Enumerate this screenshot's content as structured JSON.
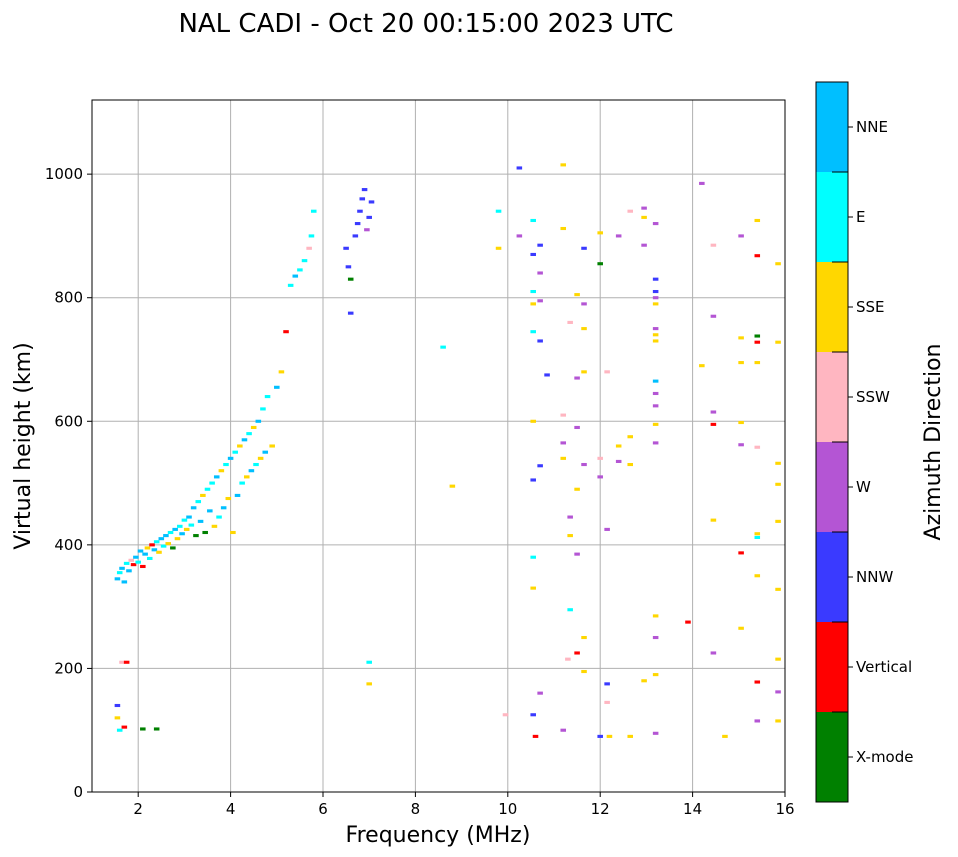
{
  "chart_data": {
    "type": "scatter",
    "title": "NAL CADI - Oct 20 00:15:00 2023 UTC",
    "xlabel": "Frequency (MHz)",
    "ylabel": "Virtual height (km)",
    "xlim": [
      1,
      16
    ],
    "ylim": [
      0,
      1120
    ],
    "xticks": [
      2,
      4,
      6,
      8,
      10,
      12,
      14,
      16
    ],
    "yticks": [
      0,
      200,
      400,
      600,
      800,
      1000
    ],
    "grid": true,
    "colorbar": {
      "label": "Azimuth Direction",
      "position": "right",
      "categories": [
        {
          "name": "X-mode",
          "color": "#008000"
        },
        {
          "name": "Vertical",
          "color": "#ff0000"
        },
        {
          "name": "NNW",
          "color": "#3a3aff"
        },
        {
          "name": "W",
          "color": "#b455d4"
        },
        {
          "name": "SSW",
          "color": "#ffb6c1"
        },
        {
          "name": "SSE",
          "color": "#ffd700"
        },
        {
          "name": "E",
          "color": "#00ffff"
        },
        {
          "name": "NNE",
          "color": "#00bfff"
        }
      ]
    },
    "points": [
      {
        "f": 1.55,
        "h": 345,
        "c": "NNE"
      },
      {
        "f": 1.6,
        "h": 355,
        "c": "E"
      },
      {
        "f": 1.65,
        "h": 362,
        "c": "NNE"
      },
      {
        "f": 1.7,
        "h": 340,
        "c": "NNE"
      },
      {
        "f": 1.75,
        "h": 370,
        "c": "E"
      },
      {
        "f": 1.8,
        "h": 358,
        "c": "NNE"
      },
      {
        "f": 1.85,
        "h": 375,
        "c": "SSW"
      },
      {
        "f": 1.9,
        "h": 368,
        "c": "Vertical"
      },
      {
        "f": 1.95,
        "h": 380,
        "c": "NNE"
      },
      {
        "f": 2.0,
        "h": 372,
        "c": "E"
      },
      {
        "f": 2.05,
        "h": 390,
        "c": "NNE"
      },
      {
        "f": 2.1,
        "h": 365,
        "c": "Vertical"
      },
      {
        "f": 2.15,
        "h": 385,
        "c": "NNE"
      },
      {
        "f": 2.2,
        "h": 395,
        "c": "SSE"
      },
      {
        "f": 2.25,
        "h": 378,
        "c": "E"
      },
      {
        "f": 2.3,
        "h": 400,
        "c": "Vertical"
      },
      {
        "f": 2.35,
        "h": 392,
        "c": "NNE"
      },
      {
        "f": 2.4,
        "h": 405,
        "c": "E"
      },
      {
        "f": 2.45,
        "h": 388,
        "c": "SSE"
      },
      {
        "f": 2.5,
        "h": 410,
        "c": "NNE"
      },
      {
        "f": 2.55,
        "h": 398,
        "c": "E"
      },
      {
        "f": 2.6,
        "h": 415,
        "c": "NNE"
      },
      {
        "f": 2.65,
        "h": 402,
        "c": "SSE"
      },
      {
        "f": 2.7,
        "h": 420,
        "c": "E"
      },
      {
        "f": 2.75,
        "h": 395,
        "c": "X-mode"
      },
      {
        "f": 2.8,
        "h": 425,
        "c": "NNE"
      },
      {
        "f": 2.85,
        "h": 410,
        "c": "SSE"
      },
      {
        "f": 2.9,
        "h": 430,
        "c": "E"
      },
      {
        "f": 2.95,
        "h": 418,
        "c": "NNE"
      },
      {
        "f": 3.0,
        "h": 440,
        "c": "E"
      },
      {
        "f": 3.05,
        "h": 425,
        "c": "SSE"
      },
      {
        "f": 3.1,
        "h": 445,
        "c": "NNE"
      },
      {
        "f": 3.15,
        "h": 432,
        "c": "E"
      },
      {
        "f": 3.2,
        "h": 460,
        "c": "NNE"
      },
      {
        "f": 3.25,
        "h": 415,
        "c": "X-mode"
      },
      {
        "f": 3.3,
        "h": 470,
        "c": "E"
      },
      {
        "f": 3.35,
        "h": 438,
        "c": "NNE"
      },
      {
        "f": 3.4,
        "h": 480,
        "c": "SSE"
      },
      {
        "f": 3.45,
        "h": 420,
        "c": "X-mode"
      },
      {
        "f": 3.5,
        "h": 490,
        "c": "E"
      },
      {
        "f": 3.55,
        "h": 455,
        "c": "NNE"
      },
      {
        "f": 3.6,
        "h": 500,
        "c": "E"
      },
      {
        "f": 3.65,
        "h": 430,
        "c": "SSE"
      },
      {
        "f": 3.7,
        "h": 510,
        "c": "NNE"
      },
      {
        "f": 3.75,
        "h": 445,
        "c": "E"
      },
      {
        "f": 3.8,
        "h": 520,
        "c": "SSE"
      },
      {
        "f": 3.85,
        "h": 460,
        "c": "NNE"
      },
      {
        "f": 3.9,
        "h": 530,
        "c": "E"
      },
      {
        "f": 3.95,
        "h": 475,
        "c": "SSE"
      },
      {
        "f": 4.0,
        "h": 540,
        "c": "NNE"
      },
      {
        "f": 4.05,
        "h": 420,
        "c": "SSE"
      },
      {
        "f": 4.1,
        "h": 550,
        "c": "E"
      },
      {
        "f": 4.15,
        "h": 480,
        "c": "NNE"
      },
      {
        "f": 4.2,
        "h": 560,
        "c": "SSE"
      },
      {
        "f": 4.25,
        "h": 500,
        "c": "E"
      },
      {
        "f": 4.3,
        "h": 570,
        "c": "NNE"
      },
      {
        "f": 4.35,
        "h": 510,
        "c": "SSE"
      },
      {
        "f": 4.4,
        "h": 580,
        "c": "E"
      },
      {
        "f": 4.45,
        "h": 520,
        "c": "NNE"
      },
      {
        "f": 4.5,
        "h": 590,
        "c": "SSE"
      },
      {
        "f": 4.55,
        "h": 530,
        "c": "E"
      },
      {
        "f": 4.6,
        "h": 600,
        "c": "NNE"
      },
      {
        "f": 4.65,
        "h": 540,
        "c": "SSE"
      },
      {
        "f": 4.7,
        "h": 620,
        "c": "E"
      },
      {
        "f": 4.75,
        "h": 550,
        "c": "NNE"
      },
      {
        "f": 4.8,
        "h": 640,
        "c": "E"
      },
      {
        "f": 4.9,
        "h": 560,
        "c": "SSE"
      },
      {
        "f": 5.0,
        "h": 655,
        "c": "NNE"
      },
      {
        "f": 5.1,
        "h": 680,
        "c": "SSE"
      },
      {
        "f": 5.2,
        "h": 745,
        "c": "Vertical"
      },
      {
        "f": 5.3,
        "h": 820,
        "c": "E"
      },
      {
        "f": 5.4,
        "h": 835,
        "c": "NNE"
      },
      {
        "f": 5.5,
        "h": 845,
        "c": "E"
      },
      {
        "f": 5.6,
        "h": 860,
        "c": "E"
      },
      {
        "f": 5.7,
        "h": 880,
        "c": "SSW"
      },
      {
        "f": 5.75,
        "h": 900,
        "c": "E"
      },
      {
        "f": 5.8,
        "h": 940,
        "c": "E"
      },
      {
        "f": 1.55,
        "h": 140,
        "c": "NNW"
      },
      {
        "f": 1.55,
        "h": 120,
        "c": "SSE"
      },
      {
        "f": 1.6,
        "h": 100,
        "c": "E"
      },
      {
        "f": 1.65,
        "h": 210,
        "c": "SSW"
      },
      {
        "f": 1.75,
        "h": 210,
        "c": "Vertical"
      },
      {
        "f": 1.7,
        "h": 105,
        "c": "Vertical"
      },
      {
        "f": 2.1,
        "h": 102,
        "c": "X-mode"
      },
      {
        "f": 2.4,
        "h": 102,
        "c": "X-mode"
      },
      {
        "f": 6.5,
        "h": 880,
        "c": "NNW"
      },
      {
        "f": 6.55,
        "h": 850,
        "c": "NNW"
      },
      {
        "f": 6.6,
        "h": 830,
        "c": "X-mode"
      },
      {
        "f": 6.7,
        "h": 900,
        "c": "NNW"
      },
      {
        "f": 6.75,
        "h": 920,
        "c": "NNW"
      },
      {
        "f": 6.8,
        "h": 940,
        "c": "NNW"
      },
      {
        "f": 6.85,
        "h": 960,
        "c": "NNW"
      },
      {
        "f": 6.9,
        "h": 975,
        "c": "NNW"
      },
      {
        "f": 6.95,
        "h": 910,
        "c": "W"
      },
      {
        "f": 7.0,
        "h": 930,
        "c": "NNW"
      },
      {
        "f": 7.05,
        "h": 955,
        "c": "NNW"
      },
      {
        "f": 6.6,
        "h": 775,
        "c": "NNW"
      },
      {
        "f": 7.0,
        "h": 175,
        "c": "SSE"
      },
      {
        "f": 7.0,
        "h": 210,
        "c": "E"
      },
      {
        "f": 8.6,
        "h": 720,
        "c": "E"
      },
      {
        "f": 8.8,
        "h": 495,
        "c": "SSE"
      },
      {
        "f": 9.8,
        "h": 940,
        "c": "E"
      },
      {
        "f": 9.8,
        "h": 880,
        "c": "SSE"
      },
      {
        "f": 9.95,
        "h": 125,
        "c": "SSW"
      },
      {
        "f": 10.25,
        "h": 1010,
        "c": "NNW"
      },
      {
        "f": 10.25,
        "h": 900,
        "c": "W"
      },
      {
        "f": 10.55,
        "h": 925,
        "c": "E"
      },
      {
        "f": 10.55,
        "h": 870,
        "c": "NNW"
      },
      {
        "f": 10.55,
        "h": 810,
        "c": "E"
      },
      {
        "f": 10.55,
        "h": 790,
        "c": "SSE"
      },
      {
        "f": 10.55,
        "h": 745,
        "c": "E"
      },
      {
        "f": 10.7,
        "h": 885,
        "c": "NNW"
      },
      {
        "f": 10.7,
        "h": 840,
        "c": "W"
      },
      {
        "f": 10.7,
        "h": 795,
        "c": "W"
      },
      {
        "f": 10.7,
        "h": 730,
        "c": "NNW"
      },
      {
        "f": 10.85,
        "h": 675,
        "c": "NNW"
      },
      {
        "f": 10.55,
        "h": 600,
        "c": "SSE"
      },
      {
        "f": 10.7,
        "h": 528,
        "c": "NNW"
      },
      {
        "f": 10.55,
        "h": 505,
        "c": "NNW"
      },
      {
        "f": 10.55,
        "h": 380,
        "c": "E"
      },
      {
        "f": 10.55,
        "h": 330,
        "c": "SSE"
      },
      {
        "f": 10.7,
        "h": 160,
        "c": "W"
      },
      {
        "f": 10.55,
        "h": 125,
        "c": "NNW"
      },
      {
        "f": 10.6,
        "h": 90,
        "c": "Vertical"
      },
      {
        "f": 11.2,
        "h": 1015,
        "c": "SSE"
      },
      {
        "f": 11.2,
        "h": 912,
        "c": "SSE"
      },
      {
        "f": 11.2,
        "h": 610,
        "c": "SSW"
      },
      {
        "f": 11.2,
        "h": 565,
        "c": "W"
      },
      {
        "f": 11.2,
        "h": 540,
        "c": "SSE"
      },
      {
        "f": 11.35,
        "h": 760,
        "c": "SSW"
      },
      {
        "f": 11.35,
        "h": 445,
        "c": "W"
      },
      {
        "f": 11.35,
        "h": 415,
        "c": "SSE"
      },
      {
        "f": 11.35,
        "h": 295,
        "c": "E"
      },
      {
        "f": 11.3,
        "h": 215,
        "c": "SSW"
      },
      {
        "f": 11.2,
        "h": 100,
        "c": "W"
      },
      {
        "f": 11.5,
        "h": 805,
        "c": "SSE"
      },
      {
        "f": 11.5,
        "h": 670,
        "c": "W"
      },
      {
        "f": 11.5,
        "h": 590,
        "c": "W"
      },
      {
        "f": 11.5,
        "h": 490,
        "c": "SSE"
      },
      {
        "f": 11.5,
        "h": 385,
        "c": "W"
      },
      {
        "f": 11.5,
        "h": 225,
        "c": "Vertical"
      },
      {
        "f": 11.65,
        "h": 880,
        "c": "NNW"
      },
      {
        "f": 11.65,
        "h": 790,
        "c": "W"
      },
      {
        "f": 11.65,
        "h": 750,
        "c": "SSE"
      },
      {
        "f": 11.65,
        "h": 680,
        "c": "SSE"
      },
      {
        "f": 11.65,
        "h": 530,
        "c": "W"
      },
      {
        "f": 11.65,
        "h": 250,
        "c": "SSE"
      },
      {
        "f": 11.65,
        "h": 195,
        "c": "SSE"
      },
      {
        "f": 12.0,
        "h": 905,
        "c": "SSE"
      },
      {
        "f": 12.0,
        "h": 855,
        "c": "X-mode"
      },
      {
        "f": 12.0,
        "h": 540,
        "c": "SSW"
      },
      {
        "f": 12.0,
        "h": 510,
        "c": "W"
      },
      {
        "f": 12.0,
        "h": 90,
        "c": "NNW"
      },
      {
        "f": 12.15,
        "h": 680,
        "c": "SSW"
      },
      {
        "f": 12.15,
        "h": 425,
        "c": "W"
      },
      {
        "f": 12.15,
        "h": 175,
        "c": "NNW"
      },
      {
        "f": 12.15,
        "h": 145,
        "c": "SSW"
      },
      {
        "f": 12.2,
        "h": 90,
        "c": "SSE"
      },
      {
        "f": 12.4,
        "h": 900,
        "c": "W"
      },
      {
        "f": 12.4,
        "h": 560,
        "c": "SSE"
      },
      {
        "f": 12.4,
        "h": 535,
        "c": "W"
      },
      {
        "f": 12.65,
        "h": 940,
        "c": "SSW"
      },
      {
        "f": 12.65,
        "h": 575,
        "c": "SSE"
      },
      {
        "f": 12.65,
        "h": 530,
        "c": "SSE"
      },
      {
        "f": 12.65,
        "h": 90,
        "c": "SSE"
      },
      {
        "f": 12.95,
        "h": 945,
        "c": "W"
      },
      {
        "f": 12.95,
        "h": 930,
        "c": "SSE"
      },
      {
        "f": 12.95,
        "h": 885,
        "c": "W"
      },
      {
        "f": 12.95,
        "h": 180,
        "c": "SSE"
      },
      {
        "f": 13.2,
        "h": 920,
        "c": "W"
      },
      {
        "f": 13.2,
        "h": 830,
        "c": "NNW"
      },
      {
        "f": 13.2,
        "h": 810,
        "c": "NNW"
      },
      {
        "f": 13.2,
        "h": 800,
        "c": "W"
      },
      {
        "f": 13.2,
        "h": 790,
        "c": "SSE"
      },
      {
        "f": 13.2,
        "h": 750,
        "c": "W"
      },
      {
        "f": 13.2,
        "h": 740,
        "c": "SSE"
      },
      {
        "f": 13.2,
        "h": 730,
        "c": "SSE"
      },
      {
        "f": 13.2,
        "h": 665,
        "c": "NNE"
      },
      {
        "f": 13.2,
        "h": 645,
        "c": "W"
      },
      {
        "f": 13.2,
        "h": 625,
        "c": "W"
      },
      {
        "f": 13.2,
        "h": 595,
        "c": "SSE"
      },
      {
        "f": 13.2,
        "h": 565,
        "c": "W"
      },
      {
        "f": 13.2,
        "h": 285,
        "c": "SSE"
      },
      {
        "f": 13.2,
        "h": 250,
        "c": "W"
      },
      {
        "f": 13.2,
        "h": 190,
        "c": "SSE"
      },
      {
        "f": 13.2,
        "h": 95,
        "c": "W"
      },
      {
        "f": 13.9,
        "h": 275,
        "c": "Vertical"
      },
      {
        "f": 14.2,
        "h": 985,
        "c": "W"
      },
      {
        "f": 14.2,
        "h": 690,
        "c": "SSE"
      },
      {
        "f": 14.45,
        "h": 885,
        "c": "SSW"
      },
      {
        "f": 14.45,
        "h": 770,
        "c": "W"
      },
      {
        "f": 14.45,
        "h": 615,
        "c": "W"
      },
      {
        "f": 14.45,
        "h": 595,
        "c": "Vertical"
      },
      {
        "f": 14.45,
        "h": 440,
        "c": "SSE"
      },
      {
        "f": 14.45,
        "h": 225,
        "c": "W"
      },
      {
        "f": 14.7,
        "h": 90,
        "c": "SSE"
      },
      {
        "f": 15.05,
        "h": 900,
        "c": "W"
      },
      {
        "f": 15.05,
        "h": 735,
        "c": "SSE"
      },
      {
        "f": 15.05,
        "h": 695,
        "c": "SSE"
      },
      {
        "f": 15.05,
        "h": 598,
        "c": "SSE"
      },
      {
        "f": 15.05,
        "h": 562,
        "c": "W"
      },
      {
        "f": 15.05,
        "h": 387,
        "c": "Vertical"
      },
      {
        "f": 15.05,
        "h": 265,
        "c": "SSE"
      },
      {
        "f": 15.4,
        "h": 925,
        "c": "SSE"
      },
      {
        "f": 15.4,
        "h": 868,
        "c": "Vertical"
      },
      {
        "f": 15.4,
        "h": 738,
        "c": "X-mode"
      },
      {
        "f": 15.4,
        "h": 728,
        "c": "Vertical"
      },
      {
        "f": 15.4,
        "h": 695,
        "c": "SSE"
      },
      {
        "f": 15.4,
        "h": 558,
        "c": "SSW"
      },
      {
        "f": 15.4,
        "h": 418,
        "c": "SSE"
      },
      {
        "f": 15.4,
        "h": 412,
        "c": "E"
      },
      {
        "f": 15.4,
        "h": 350,
        "c": "SSE"
      },
      {
        "f": 15.4,
        "h": 178,
        "c": "Vertical"
      },
      {
        "f": 15.4,
        "h": 115,
        "c": "W"
      },
      {
        "f": 15.85,
        "h": 855,
        "c": "SSE"
      },
      {
        "f": 15.85,
        "h": 728,
        "c": "SSE"
      },
      {
        "f": 15.85,
        "h": 532,
        "c": "SSE"
      },
      {
        "f": 15.85,
        "h": 498,
        "c": "SSE"
      },
      {
        "f": 15.85,
        "h": 438,
        "c": "SSE"
      },
      {
        "f": 15.85,
        "h": 328,
        "c": "SSE"
      },
      {
        "f": 15.85,
        "h": 215,
        "c": "SSE"
      },
      {
        "f": 15.85,
        "h": 162,
        "c": "W"
      },
      {
        "f": 15.85,
        "h": 115,
        "c": "SSE"
      }
    ]
  }
}
